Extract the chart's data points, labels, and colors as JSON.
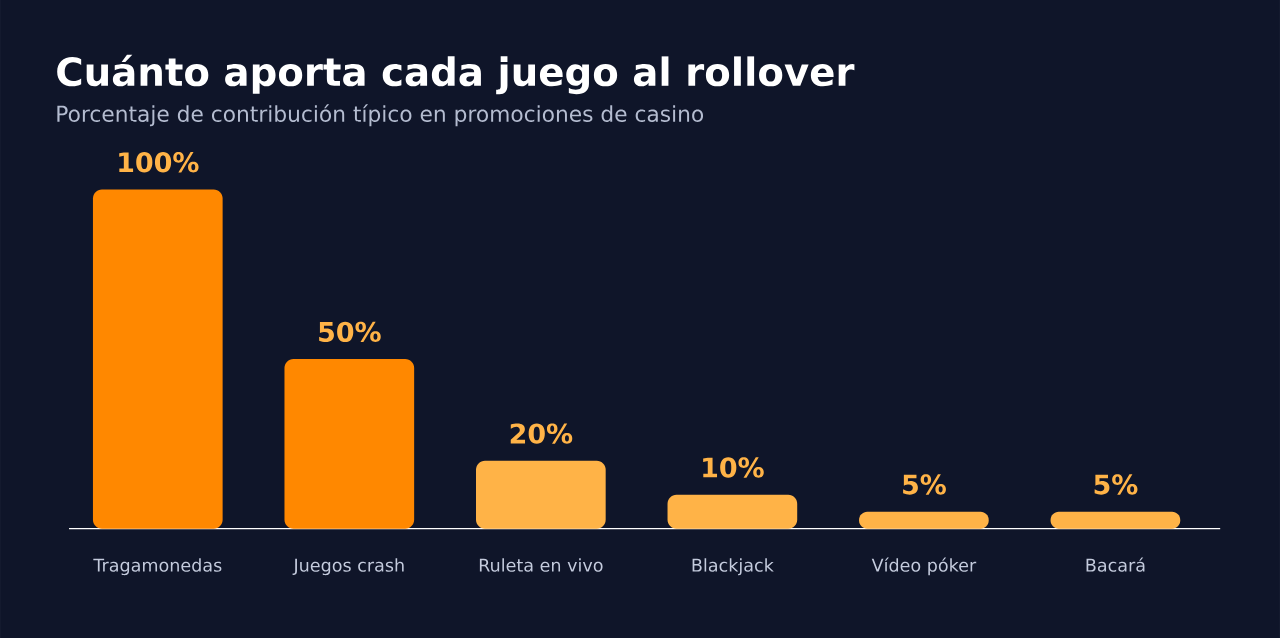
{
  "chart_data": {
    "type": "bar",
    "title": "Cuánto aporta cada juego al rollover",
    "subtitle": "Porcentaje de contribución típico en promociones de casino",
    "categories": [
      "Tragamonedas",
      "Juegos crash",
      "Ruleta en vivo",
      "Blackjack",
      "Vídeo póker",
      "Bacará"
    ],
    "values": [
      100,
      50,
      20,
      10,
      5,
      5
    ],
    "colors": [
      "#ff8800",
      "#ff8800",
      "#ffb347",
      "#ffb347",
      "#ffb347",
      "#ffb347"
    ],
    "value_labels": [
      "100%",
      "50%",
      "20%",
      "10%",
      "5%",
      "5%"
    ]
  }
}
